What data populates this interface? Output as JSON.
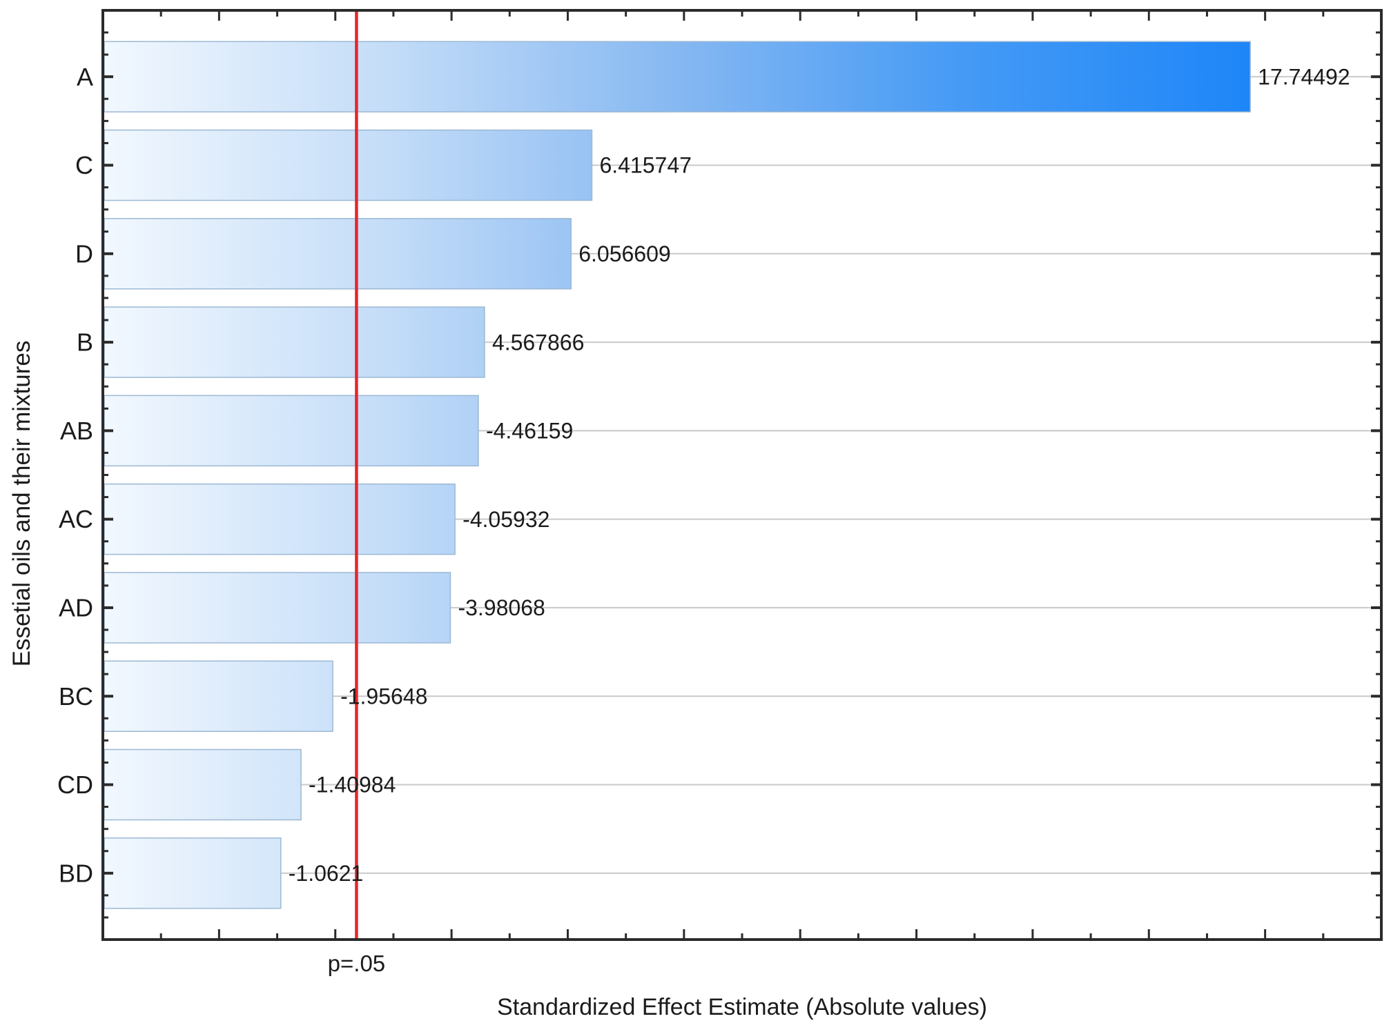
{
  "chart_data": {
    "type": "bar",
    "orientation": "horizontal",
    "title": "",
    "categories": [
      "A",
      "C",
      "D",
      "B",
      "AB",
      "AC",
      "AD",
      "BC",
      "CD",
      "BD"
    ],
    "values": [
      17.74492,
      6.415747,
      6.056609,
      4.567866,
      -4.46159,
      -4.05932,
      -3.98068,
      -1.95648,
      -1.40984,
      -1.0621
    ],
    "value_labels": [
      "17.74492",
      "6.415747",
      "6.056609",
      "4.567866",
      "-4.46159",
      "-4.05932",
      "-3.98068",
      "-1.95648",
      "-1.40984",
      "-1.0621"
    ],
    "bar_lengths_use_absolute_values": true,
    "xlabel": "Standardized Effect Estimate (Absolute values)",
    "ylabel": "Essetial oils and their mixtures",
    "xlim": [
      -2,
      20
    ],
    "x_tick_step": 1,
    "x_major_tick_step": 2,
    "x_tick_labels_shown": false,
    "y_tick_labels_shown": true,
    "grid": "horizontal-light",
    "legend": "none",
    "significance_line": {
      "value": 2.3646,
      "label": "p=.05",
      "color": "#E6252B"
    },
    "colors": {
      "background": "#ffffff",
      "axis": "#2b2b2b",
      "gridline": "#c9c9c9",
      "bar_border": "#9cb8d4",
      "bar_gradient_stops": [
        "#F2F8FE",
        "#C3DCF8",
        "#86B8F2",
        "#459AF5",
        "#1E86F8"
      ],
      "significance_line": "#E6252B",
      "text": "#1b1b1b"
    }
  }
}
